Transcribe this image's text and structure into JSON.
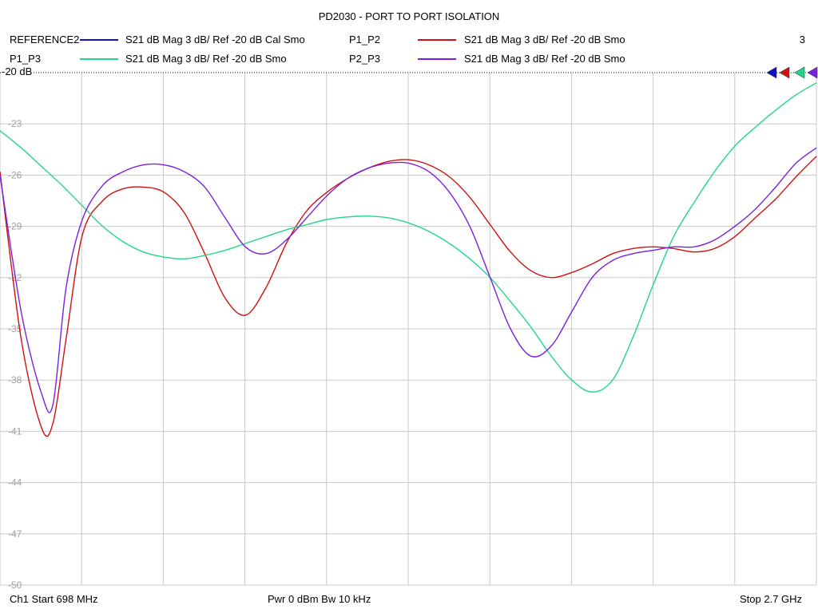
{
  "title": "PD2030 - PORT TO PORT ISOLATION",
  "channel_number": "3",
  "legend": [
    {
      "name": "REFERENCE2",
      "desc": "S21  dB Mag  3 dB/ Ref -20 dB  Cal Smo",
      "color": "#1010c8"
    },
    {
      "name": "P1_P2",
      "desc": "S21  dB Mag  3 dB/ Ref -20 dB  Smo",
      "color": "#d01010"
    },
    {
      "name": "P1_P3",
      "desc": "S21  dB Mag  3 dB/ Ref -20 dB  Smo",
      "color": "#20d888"
    },
    {
      "name": "P2_P3",
      "desc": "S21  dB Mag  3 dB/ Ref -20 dB  Smo",
      "color": "#7a20e0"
    }
  ],
  "ref_label": "-20 dB",
  "footer": {
    "start": "Ch1  Start  698 MHz",
    "power": "Pwr  0 dBm  Bw  10 kHz",
    "stop": "Stop  2.7 GHz"
  },
  "chart_data": {
    "type": "line",
    "title": "PD2030 - PORT TO PORT ISOLATION",
    "x_start_mhz": 698,
    "x_stop_mhz": 2700,
    "ylim": [
      -50,
      -20
    ],
    "yticks": [
      -20,
      -23,
      -26,
      -29,
      -32,
      -35,
      -38,
      -41,
      -44,
      -47,
      -50
    ],
    "ytick_labels": [
      "-20",
      "-23",
      "-26",
      "-29",
      "-32",
      "-35",
      "-38",
      "-41",
      "-44",
      "-47",
      "-50"
    ],
    "x_divisions": 10,
    "grid": true,
    "series": [
      {
        "name": "P1_P2",
        "color": "#d01010",
        "x": [
          698,
          750,
          800,
          828,
          860,
          900,
          950,
          1000,
          1050,
          1100,
          1150,
          1200,
          1250,
          1300,
          1350,
          1400,
          1450,
          1500,
          1550,
          1600,
          1650,
          1700,
          1750,
          1800,
          1850,
          1900,
          1950,
          2000,
          2050,
          2100,
          2150,
          2200,
          2250,
          2300,
          2350,
          2400,
          2450,
          2500,
          2550,
          2600,
          2650,
          2700
        ],
        "y": [
          -25.8,
          -35.6,
          -40.8,
          -40.5,
          -35.6,
          -29.5,
          -27.5,
          -26.8,
          -26.7,
          -27.0,
          -28.2,
          -30.6,
          -33.2,
          -34.2,
          -32.6,
          -30.0,
          -28.1,
          -27.0,
          -26.2,
          -25.6,
          -25.2,
          -25.1,
          -25.4,
          -26.1,
          -27.3,
          -28.9,
          -30.5,
          -31.6,
          -32.0,
          -31.7,
          -31.2,
          -30.6,
          -30.3,
          -30.2,
          -30.3,
          -30.5,
          -30.3,
          -29.6,
          -28.5,
          -27.4,
          -26.1,
          -24.9
        ]
      },
      {
        "name": "P1_P3",
        "color": "#20d888",
        "x": [
          698,
          750,
          800,
          850,
          900,
          950,
          1000,
          1050,
          1100,
          1150,
          1200,
          1250,
          1300,
          1350,
          1400,
          1450,
          1500,
          1550,
          1600,
          1650,
          1700,
          1750,
          1800,
          1850,
          1900,
          1950,
          2000,
          2050,
          2100,
          2150,
          2200,
          2250,
          2300,
          2350,
          2400,
          2450,
          2500,
          2550,
          2600,
          2650,
          2700
        ],
        "y": [
          -23.4,
          -24.4,
          -25.5,
          -26.6,
          -27.8,
          -29.0,
          -29.9,
          -30.5,
          -30.8,
          -30.9,
          -30.7,
          -30.4,
          -30.0,
          -29.6,
          -29.2,
          -28.9,
          -28.6,
          -28.45,
          -28.4,
          -28.5,
          -28.8,
          -29.3,
          -30.0,
          -30.9,
          -32.0,
          -33.4,
          -34.9,
          -36.6,
          -38.0,
          -38.7,
          -38.0,
          -35.5,
          -32.4,
          -29.6,
          -27.6,
          -25.8,
          -24.3,
          -23.2,
          -22.2,
          -21.3,
          -20.6
        ]
      },
      {
        "name": "P2_P3",
        "color": "#7a20e0",
        "x": [
          698,
          750,
          800,
          828,
          860,
          900,
          950,
          1000,
          1050,
          1100,
          1150,
          1200,
          1250,
          1300,
          1350,
          1400,
          1450,
          1500,
          1550,
          1600,
          1650,
          1700,
          1750,
          1800,
          1850,
          1900,
          1950,
          2000,
          2050,
          2100,
          2150,
          2200,
          2250,
          2300,
          2350,
          2400,
          2450,
          2500,
          2550,
          2600,
          2650,
          2700
        ],
        "y": [
          -26.0,
          -34.0,
          -38.8,
          -39.4,
          -32.6,
          -28.6,
          -26.6,
          -25.8,
          -25.4,
          -25.4,
          -25.8,
          -26.7,
          -28.5,
          -30.2,
          -30.6,
          -29.8,
          -28.5,
          -27.2,
          -26.2,
          -25.6,
          -25.3,
          -25.3,
          -25.8,
          -27.0,
          -29.0,
          -32.0,
          -35.0,
          -36.6,
          -36.0,
          -34.0,
          -32.0,
          -31.0,
          -30.6,
          -30.4,
          -30.2,
          -30.2,
          -29.8,
          -29.0,
          -28.0,
          -26.7,
          -25.3,
          -24.4
        ]
      }
    ]
  }
}
